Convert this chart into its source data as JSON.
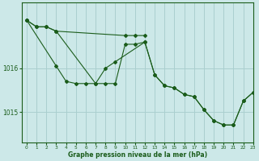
{
  "background_color": "#cce8e8",
  "grid_color": "#aacfcf",
  "line_color": "#1a5c1a",
  "text_color": "#1a5c1a",
  "xlabel": "Graphe pression niveau de la mer (hPa)",
  "xlim": [
    -0.5,
    23
  ],
  "ylim": [
    1014.3,
    1017.5
  ],
  "yticks": [
    1015,
    1016
  ],
  "xticks": [
    0,
    1,
    2,
    3,
    4,
    5,
    6,
    7,
    8,
    9,
    10,
    11,
    12,
    13,
    14,
    15,
    16,
    17,
    18,
    19,
    20,
    21,
    22,
    23
  ],
  "series": [
    {
      "x": [
        0,
        1,
        2,
        3,
        10,
        11,
        12
      ],
      "y": [
        1017.1,
        1016.95,
        1016.95,
        1016.85,
        1016.75,
        1016.75,
        1016.75
      ]
    },
    {
      "x": [
        0,
        1,
        2,
        3,
        7,
        8,
        9,
        10,
        11,
        12,
        13,
        14,
        15,
        16,
        17,
        18,
        19,
        20,
        21,
        22,
        23
      ],
      "y": [
        1017.1,
        1016.95,
        1016.95,
        1016.85,
        1015.65,
        1015.65,
        1015.65,
        1016.55,
        1016.55,
        1016.6,
        1015.85,
        1015.6,
        1015.55,
        1015.4,
        1015.35,
        1015.05,
        1014.8,
        1014.7,
        1014.7,
        1015.25,
        1015.45
      ]
    },
    {
      "x": [
        0,
        3,
        4,
        5,
        6,
        7,
        8,
        9,
        12,
        13,
        14,
        15,
        16,
        17,
        18,
        19,
        20,
        21,
        22,
        23
      ],
      "y": [
        1017.1,
        1016.05,
        1015.7,
        1015.65,
        1015.65,
        1015.65,
        1016.0,
        1016.15,
        1016.6,
        1015.85,
        1015.6,
        1015.55,
        1015.4,
        1015.35,
        1015.05,
        1014.8,
        1014.7,
        1014.7,
        1015.25,
        1015.45
      ]
    }
  ],
  "figwidth": 3.2,
  "figheight": 2.0,
  "dpi": 100
}
